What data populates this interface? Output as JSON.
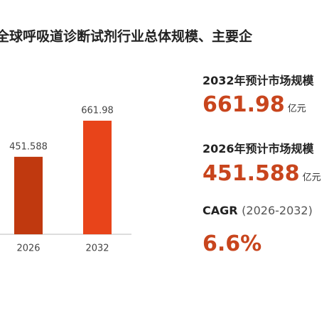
{
  "chart_data": {
    "type": "bar",
    "title": "全球呼吸道诊断试剂行业总体规模、主要企",
    "categories": [
      "2026",
      "2032"
    ],
    "values": [
      451.588,
      661.98
    ],
    "colors": [
      "#c0390f",
      "#e8441a"
    ]
  },
  "stats": [
    {
      "label": "2032年预计市场规模",
      "value": 661.98,
      "unit": "亿元"
    },
    {
      "label": "2026年预计市场规模",
      "value": 451.588,
      "unit": "亿元"
    }
  ],
  "cagr": {
    "label": "CAGR",
    "period": "(2026-2032)",
    "value": "6.6%"
  }
}
